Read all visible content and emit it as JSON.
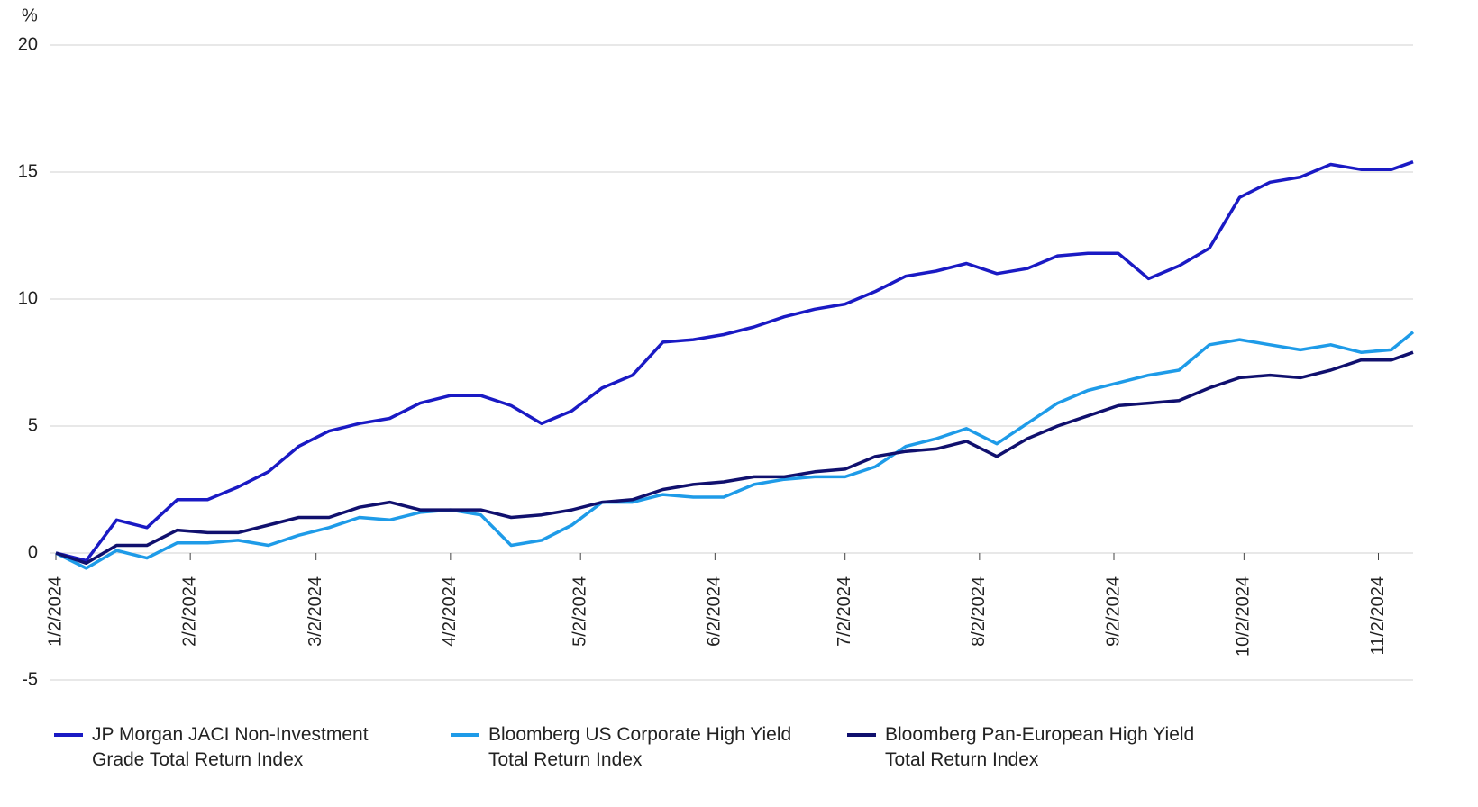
{
  "chart_data": {
    "type": "line",
    "ylabel": "%",
    "x": [
      "2024-01-02",
      "2024-01-09",
      "2024-01-16",
      "2024-01-23",
      "2024-01-30",
      "2024-02-06",
      "2024-02-13",
      "2024-02-20",
      "2024-02-27",
      "2024-03-05",
      "2024-03-12",
      "2024-03-19",
      "2024-03-26",
      "2024-04-02",
      "2024-04-09",
      "2024-04-16",
      "2024-04-23",
      "2024-04-30",
      "2024-05-07",
      "2024-05-14",
      "2024-05-21",
      "2024-05-28",
      "2024-06-04",
      "2024-06-11",
      "2024-06-18",
      "2024-06-25",
      "2024-07-02",
      "2024-07-09",
      "2024-07-16",
      "2024-07-23",
      "2024-07-30",
      "2024-08-06",
      "2024-08-13",
      "2024-08-20",
      "2024-08-27",
      "2024-09-03",
      "2024-09-10",
      "2024-09-17",
      "2024-09-24",
      "2024-10-01",
      "2024-10-08",
      "2024-10-15",
      "2024-10-22",
      "2024-10-29",
      "2024-11-05",
      "2024-11-10"
    ],
    "series": [
      {
        "name": "JP Morgan JACI Non-Investment Grade Total Return Index",
        "color": "#1a1ac4",
        "values": [
          0,
          -0.3,
          1.3,
          1.0,
          2.1,
          2.1,
          2.6,
          3.2,
          4.2,
          4.8,
          5.1,
          5.3,
          5.9,
          6.2,
          6.2,
          5.8,
          5.1,
          5.6,
          6.5,
          7.0,
          8.3,
          8.4,
          8.6,
          8.9,
          9.3,
          9.6,
          9.8,
          10.3,
          10.9,
          11.1,
          11.4,
          11.0,
          11.2,
          11.7,
          11.8,
          11.8,
          10.8,
          11.3,
          12.0,
          14.0,
          14.6,
          14.8,
          15.3,
          15.1,
          15.1,
          15.4
        ]
      },
      {
        "name": "Bloomberg US Corporate High Yield Total Return Index",
        "color": "#1e9be8",
        "values": [
          0,
          -0.6,
          0.1,
          -0.2,
          0.4,
          0.4,
          0.5,
          0.3,
          0.7,
          1.0,
          1.4,
          1.3,
          1.6,
          1.7,
          1.5,
          0.3,
          0.5,
          1.1,
          2.0,
          2.0,
          2.3,
          2.2,
          2.2,
          2.7,
          2.9,
          3.0,
          3.0,
          3.4,
          4.2,
          4.5,
          4.9,
          4.3,
          5.1,
          5.9,
          6.4,
          6.7,
          7.0,
          7.2,
          8.2,
          8.4,
          8.2,
          8.0,
          8.2,
          7.9,
          8.0,
          8.7
        ]
      },
      {
        "name": "Bloomberg Pan-European High Yield Total Return Index",
        "color": "#10106e",
        "values": [
          0,
          -0.4,
          0.3,
          0.3,
          0.9,
          0.8,
          0.8,
          1.1,
          1.4,
          1.4,
          1.8,
          2.0,
          1.7,
          1.7,
          1.7,
          1.4,
          1.5,
          1.7,
          2.0,
          2.1,
          2.5,
          2.7,
          2.8,
          3.0,
          3.0,
          3.2,
          3.3,
          3.8,
          4.0,
          4.1,
          4.4,
          3.8,
          4.5,
          5.0,
          5.4,
          5.8,
          5.9,
          6.0,
          6.5,
          6.9,
          7.0,
          6.9,
          7.2,
          7.6,
          7.6,
          7.9
        ]
      }
    ],
    "xlim": [
      "2024-01-02",
      "2024-11-10"
    ],
    "xticks": [
      {
        "value": "2024-01-02",
        "label": "1/2/2024"
      },
      {
        "value": "2024-02-02",
        "label": "2/2/2024"
      },
      {
        "value": "2024-03-02",
        "label": "3/2/2024"
      },
      {
        "value": "2024-04-02",
        "label": "4/2/2024"
      },
      {
        "value": "2024-05-02",
        "label": "5/2/2024"
      },
      {
        "value": "2024-06-02",
        "label": "6/2/2024"
      },
      {
        "value": "2024-07-02",
        "label": "7/2/2024"
      },
      {
        "value": "2024-08-02",
        "label": "8/2/2024"
      },
      {
        "value": "2024-09-02",
        "label": "9/2/2024"
      },
      {
        "value": "2024-10-02",
        "label": "10/2/2024"
      },
      {
        "value": "2024-11-02",
        "label": "11/2/2024"
      }
    ],
    "ylim": [
      -5,
      20
    ],
    "yticks": [
      -5,
      0,
      5,
      10,
      15,
      20
    ],
    "grid": true,
    "legend": "bottom"
  }
}
